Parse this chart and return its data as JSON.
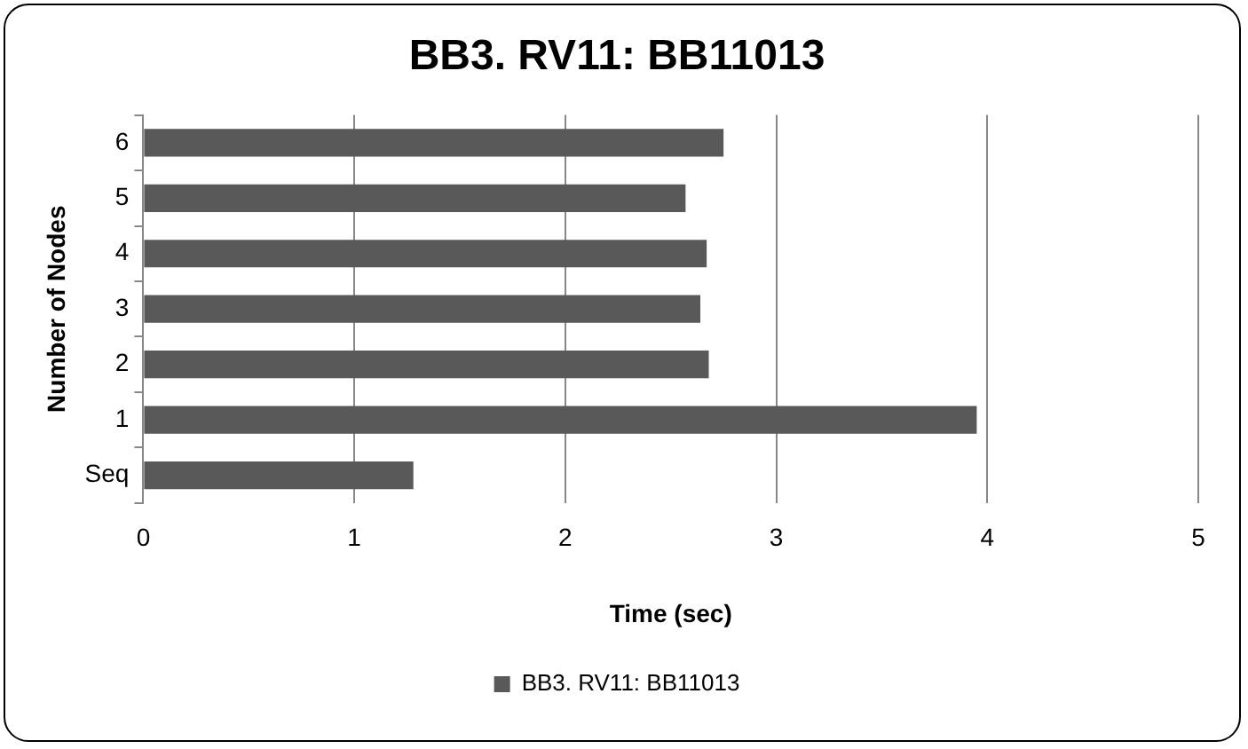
{
  "chart_data": {
    "type": "bar",
    "orientation": "horizontal",
    "title": "BB3. RV11: BB11013",
    "xlabel": "Time (sec)",
    "ylabel": "Number of Nodes",
    "categories": [
      "6",
      "5",
      "4",
      "3",
      "2",
      "1",
      "Seq"
    ],
    "series": [
      {
        "name": "BB3. RV11: BB11013",
        "color": "#595959",
        "values": [
          2.75,
          2.57,
          2.67,
          2.64,
          2.68,
          3.95,
          1.28
        ]
      }
    ],
    "xlim": [
      0,
      5
    ],
    "xticks": [
      0,
      1,
      2,
      3,
      4,
      5
    ],
    "grid": "x",
    "legend": "bottom"
  }
}
